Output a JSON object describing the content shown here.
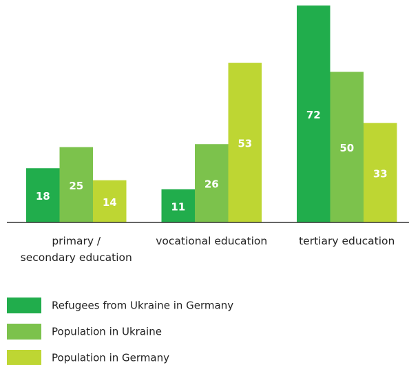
{
  "chart_data": {
    "type": "bar",
    "categories": [
      "primary /\nsecondary education",
      "vocational education",
      "tertiary education"
    ],
    "series": [
      {
        "name": "Refugees from Ukraine in Germany",
        "color": "#21ad4c",
        "values": [
          18,
          11,
          72
        ]
      },
      {
        "name": "Population in Ukraine",
        "color": "#7cc24c",
        "values": [
          25,
          26,
          50
        ]
      },
      {
        "name": "Population in Germany",
        "color": "#bed633",
        "values": [
          14,
          53,
          33
        ]
      }
    ]
  }
}
